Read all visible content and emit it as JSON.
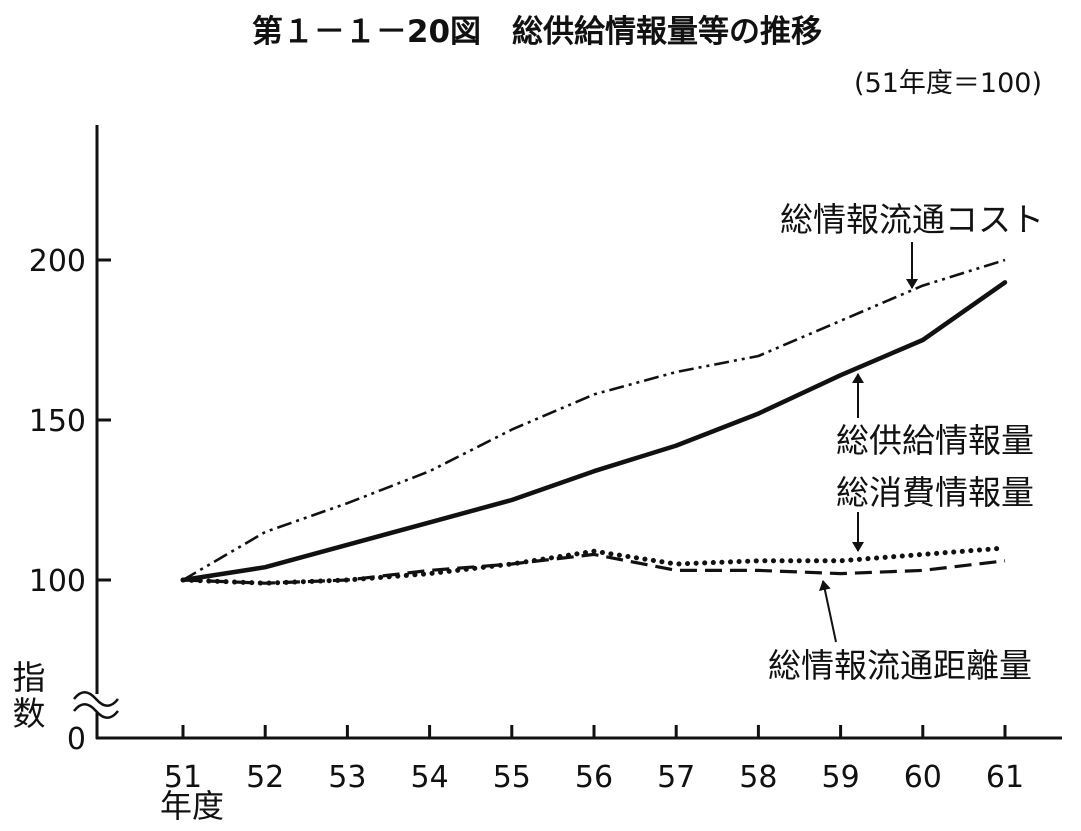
{
  "chart_data": {
    "type": "line",
    "title": "第１－１－20図　総供給情報量等の推移",
    "subtitle": "(51年度＝100)",
    "xlabel": "年度",
    "ylabel": "指数",
    "categories": [
      "51",
      "52",
      "53",
      "54",
      "55",
      "56",
      "57",
      "58",
      "59",
      "60",
      "61"
    ],
    "ylim": [
      0,
      240
    ],
    "yticks": [
      0,
      100,
      150,
      200
    ],
    "y_axis_break": true,
    "grid": false,
    "series": [
      {
        "name": "総情報流通コスト",
        "line_style": "dash-dot",
        "color": "#111111",
        "values": [
          100,
          115,
          124,
          134,
          147,
          158,
          165,
          170,
          181,
          192,
          200
        ]
      },
      {
        "name": "総供給情報量",
        "line_style": "solid",
        "color": "#111111",
        "values": [
          100,
          104,
          111,
          118,
          125,
          134,
          142,
          152,
          164,
          175,
          193
        ]
      },
      {
        "name": "総消費情報量",
        "line_style": "dotted",
        "color": "#111111",
        "values": [
          100,
          99,
          100,
          102,
          105,
          109,
          105,
          106,
          106,
          108,
          110
        ]
      },
      {
        "name": "総情報流通距離量",
        "line_style": "dashed",
        "color": "#111111",
        "values": [
          100,
          99,
          100,
          103,
          105,
          108,
          103,
          103,
          102,
          103,
          106
        ]
      }
    ]
  }
}
